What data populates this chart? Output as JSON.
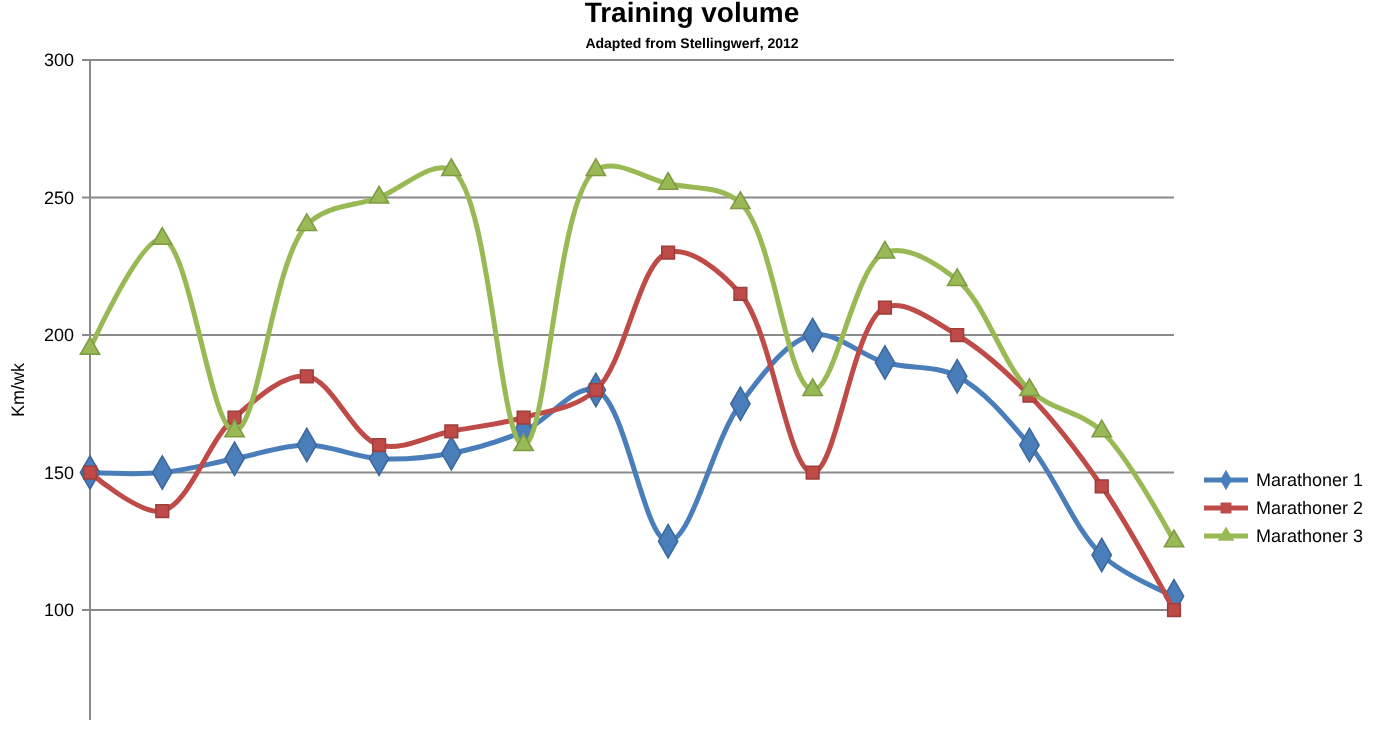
{
  "chart_data": {
    "type": "line",
    "title": "Training volume",
    "subtitle": "Adapted  from Stellingwerf, 2012",
    "ylabel": "Km/wk",
    "categories": [
      null,
      null,
      null,
      null,
      null,
      null,
      null,
      null,
      null,
      null,
      null,
      null,
      null,
      null,
      null,
      null
    ],
    "series": [
      {
        "name": "Marathoner 1",
        "color": "#4a7ebb",
        "marker": "diamond",
        "values": [
          150,
          150,
          155,
          160,
          155,
          157,
          165,
          180,
          125,
          175,
          200,
          190,
          185,
          160,
          120,
          105
        ]
      },
      {
        "name": "Marathoner 2",
        "color": "#be4b48",
        "marker": "square",
        "values": [
          150,
          136,
          170,
          185,
          160,
          165,
          170,
          180,
          230,
          215,
          150,
          210,
          200,
          178,
          145,
          100
        ]
      },
      {
        "name": "Marathoner 3",
        "color": "#98b954",
        "marker": "triangle",
        "values": [
          195,
          235,
          165,
          240,
          250,
          260,
          160,
          260,
          255,
          248,
          180,
          230,
          220,
          180,
          165,
          125
        ]
      }
    ],
    "ylim": [
      60,
      300
    ],
    "yticks": [
      100,
      150,
      200,
      250,
      300
    ],
    "grid": "y",
    "legend": "right"
  }
}
